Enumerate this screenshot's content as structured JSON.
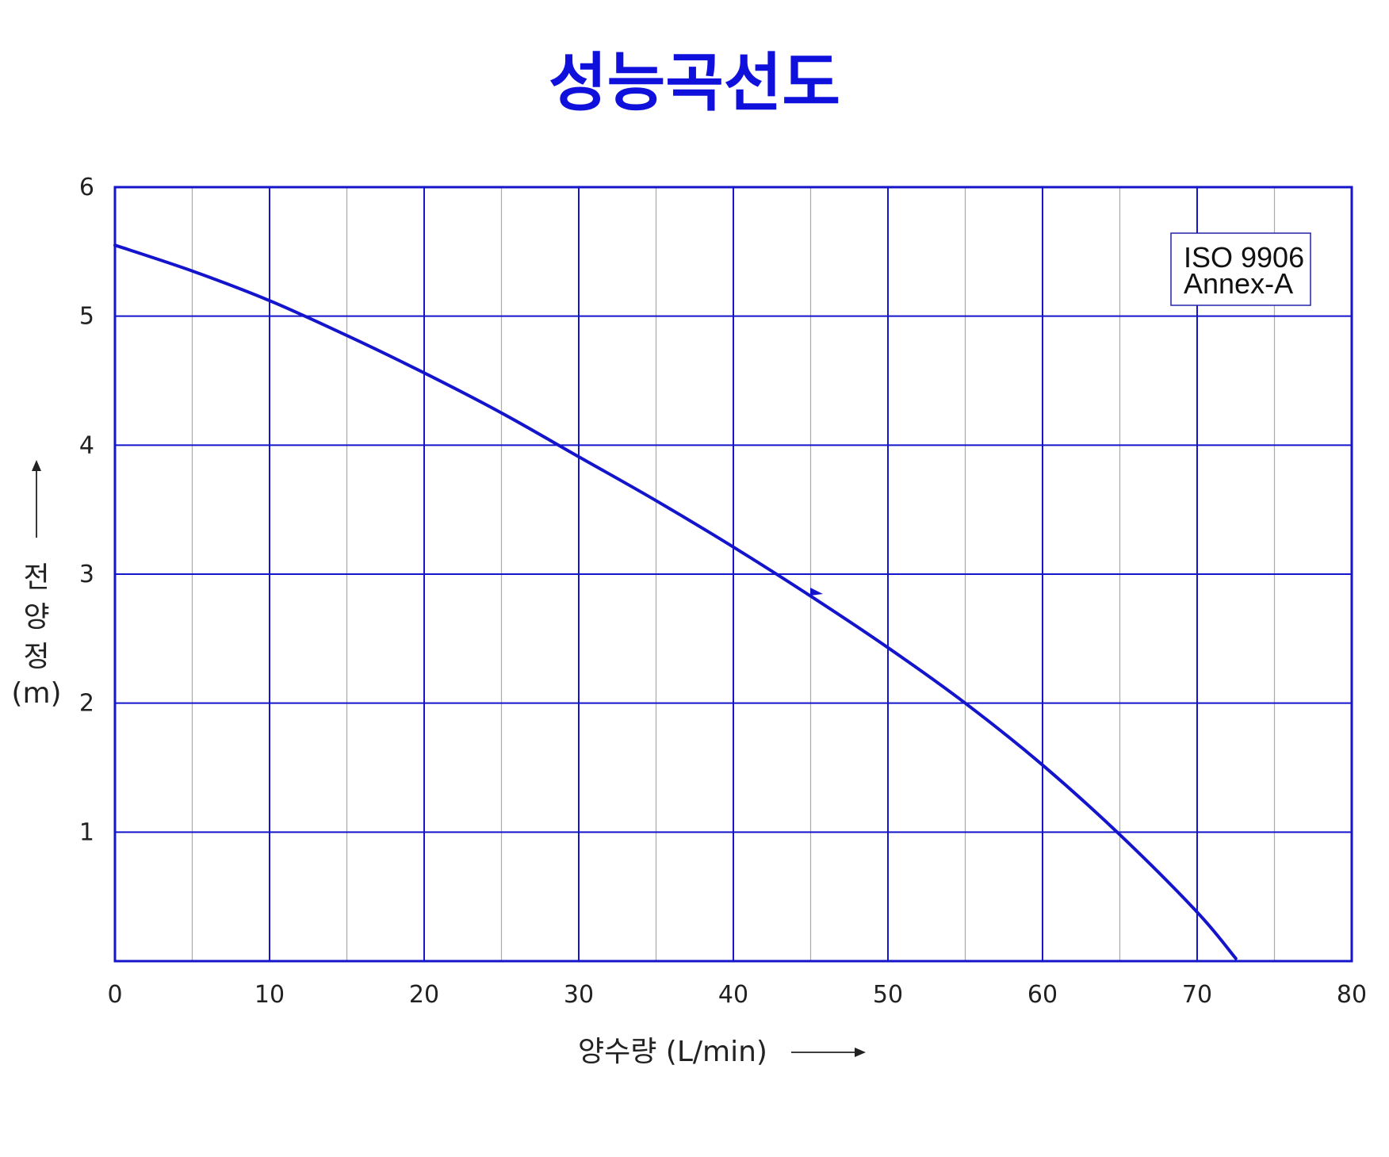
{
  "chart_data": {
    "type": "line",
    "title": "성능곡선도",
    "xlabel": "양수량 (L/min)",
    "ylabel_chars": [
      "전",
      "양",
      "정",
      "(m)"
    ],
    "x_ticks": [
      "0",
      "10",
      "20",
      "30",
      "40",
      "50",
      "60",
      "70",
      "80"
    ],
    "y_ticks": [
      "1",
      "2",
      "3",
      "4",
      "5",
      "6"
    ],
    "xlim": [
      0,
      80
    ],
    "ylim": [
      0,
      6
    ],
    "grid": true,
    "standard_lines": [
      "ISO 9906",
      "Annex-A"
    ],
    "series": [
      {
        "x": [
          0,
          5,
          10,
          15,
          20,
          25,
          30,
          35,
          40,
          45,
          50,
          55,
          60,
          65,
          70,
          72.5
        ],
        "y": [
          5.55,
          5.35,
          5.12,
          4.85,
          4.56,
          4.25,
          3.91,
          3.57,
          3.21,
          2.83,
          2.43,
          2.0,
          1.52,
          0.98,
          0.38,
          0.02
        ]
      }
    ],
    "colors": {
      "title": "#1010dd",
      "frame": "#1515cc",
      "major_grid": "#1515cc",
      "minor_grid": "#aaaaaa",
      "curve": "#1414cc",
      "box_border": "#2222aa"
    }
  }
}
